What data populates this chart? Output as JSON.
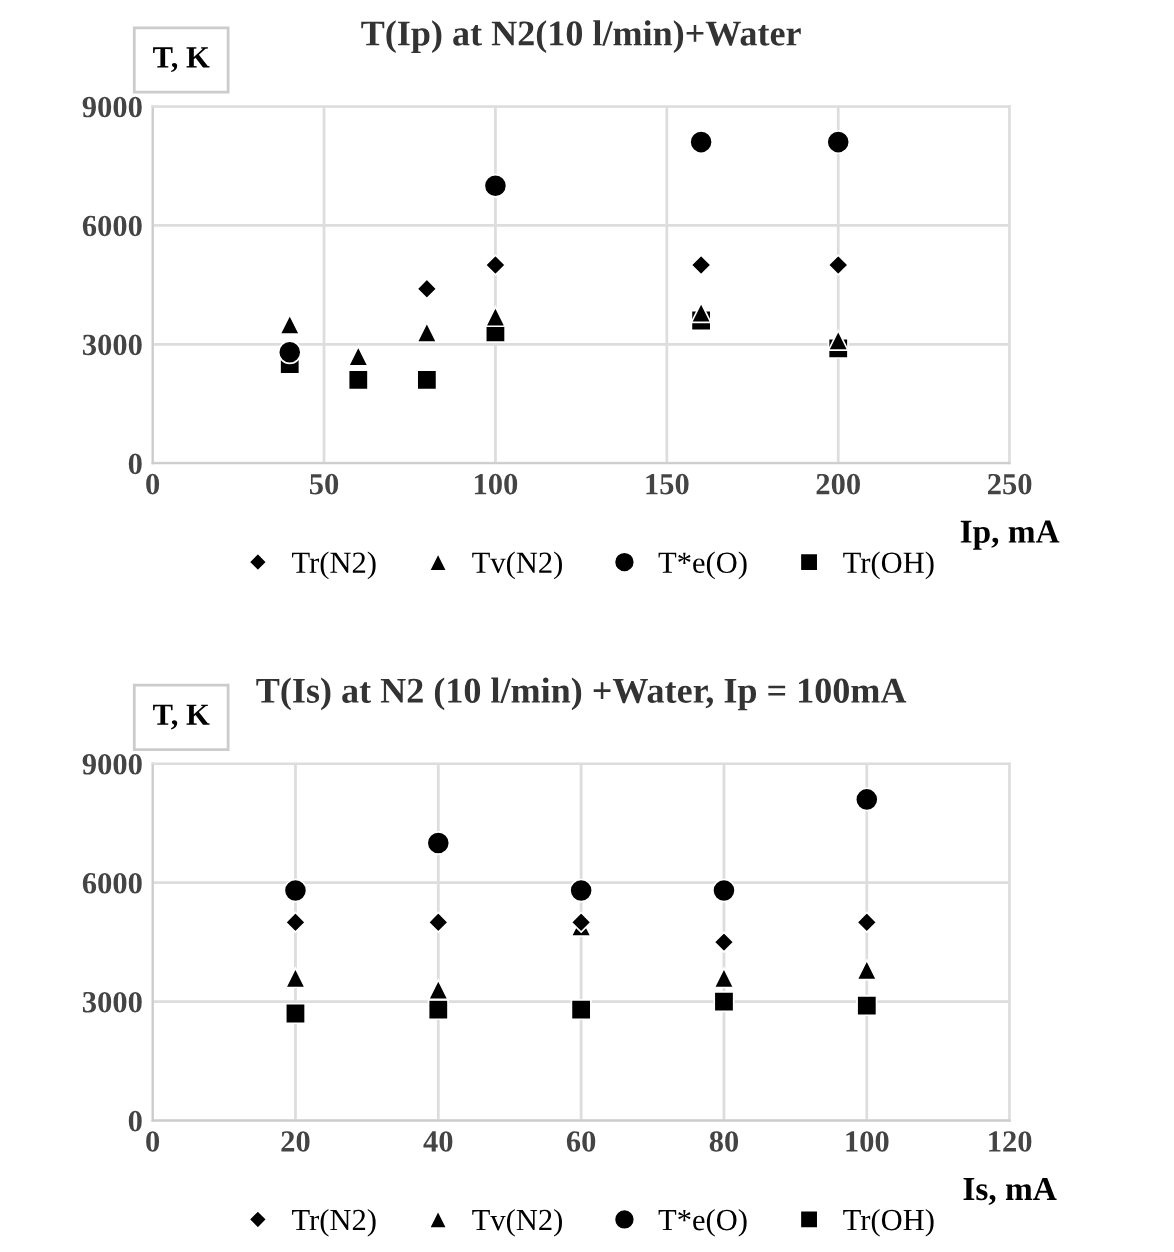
{
  "chart_data": [
    {
      "type": "scatter",
      "title": "T(Ip) at N2(10 l/min)+Water",
      "ylabel": "T, K",
      "xlabel": "Ip, mA",
      "x": [
        40,
        60,
        80,
        100,
        160,
        200
      ],
      "xlim": [
        0,
        250
      ],
      "xticks": [
        0,
        50,
        100,
        150,
        200,
        250
      ],
      "ylim": [
        0,
        9000
      ],
      "yticks": [
        0,
        3000,
        6000,
        9000
      ],
      "grid": true,
      "legend": "bottom",
      "series": [
        {
          "name": "Tr(N2)",
          "color": "#000000",
          "marker": "diamond",
          "values": [
            null,
            null,
            4400,
            5000,
            5000,
            5000
          ]
        },
        {
          "name": "Tv(N2)",
          "color": "#000000",
          "marker": "triangle",
          "values": [
            3500,
            2700,
            3300,
            3700,
            3800,
            3100
          ]
        },
        {
          "name": "T*e(O)",
          "color": "#000000",
          "marker": "circle",
          "values": [
            2800,
            null,
            null,
            7000,
            8100,
            8100
          ]
        },
        {
          "name": "Tr(OH)",
          "color": "#000000",
          "marker": "square",
          "values": [
            2500,
            2100,
            2100,
            3300,
            3600,
            2900
          ]
        }
      ]
    },
    {
      "type": "scatter",
      "title": "T(Is) at N2 (10 l/min) +Water, Ip = 100mA",
      "ylabel": "T, K",
      "xlabel": "Is, mA",
      "x": [
        20,
        40,
        60,
        80,
        100
      ],
      "xlim": [
        0,
        120
      ],
      "xticks": [
        0,
        20,
        40,
        60,
        80,
        100,
        120
      ],
      "ylim": [
        0,
        9000
      ],
      "yticks": [
        0,
        3000,
        6000,
        9000
      ],
      "grid": true,
      "legend": "bottom",
      "series": [
        {
          "name": "Tr(N2)",
          "color": "#000000",
          "marker": "diamond",
          "values": [
            5000,
            5000,
            5000,
            4500,
            5000
          ]
        },
        {
          "name": "Tv(N2)",
          "color": "#000000",
          "marker": "triangle",
          "values": [
            3600,
            3300,
            4900,
            3600,
            3800
          ]
        },
        {
          "name": "T*e(O)",
          "color": "#000000",
          "marker": "circle",
          "values": [
            5800,
            7000,
            5800,
            5800,
            8100
          ]
        },
        {
          "name": "Tr(OH)",
          "color": "#000000",
          "marker": "square",
          "values": [
            2700,
            2800,
            2800,
            3000,
            2900
          ]
        }
      ]
    }
  ]
}
